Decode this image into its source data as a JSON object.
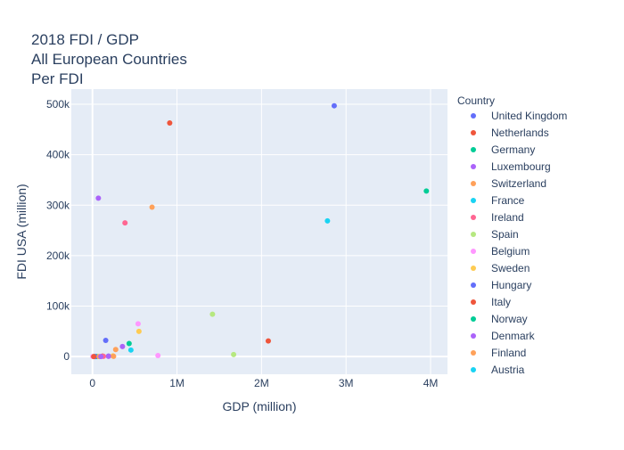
{
  "chart_data": {
    "type": "scatter",
    "title_lines": [
      "2018 FDI / GDP",
      "All European Countries",
      "Per FDI"
    ],
    "xlabel": "GDP (million)",
    "ylabel": "FDI USA (million)",
    "xlim": [
      -250000,
      4200000
    ],
    "ylim": [
      -35000,
      530000
    ],
    "x_ticks": [
      0,
      1000000,
      2000000,
      3000000,
      4000000
    ],
    "x_tick_labels": [
      "0",
      "1M",
      "2M",
      "3M",
      "4M"
    ],
    "y_ticks": [
      0,
      100000,
      200000,
      300000,
      400000,
      500000
    ],
    "y_tick_labels": [
      "0",
      "100k",
      "200k",
      "300k",
      "400k",
      "500k"
    ],
    "grid": true,
    "legend": {
      "title": "Country",
      "placement": "right"
    },
    "series": [
      {
        "name": "United Kingdom",
        "color": "#636efa",
        "x": [
          2860000
        ],
        "y": [
          497000
        ]
      },
      {
        "name": "Netherlands",
        "color": "#EF553B",
        "x": [
          914000
        ],
        "y": [
          463000
        ]
      },
      {
        "name": "Germany",
        "color": "#00cc96",
        "x": [
          3950000
        ],
        "y": [
          328000
        ]
      },
      {
        "name": "Luxembourg",
        "color": "#ab63fa",
        "x": [
          70000
        ],
        "y": [
          314000
        ]
      },
      {
        "name": "Switzerland",
        "color": "#FFA15A",
        "x": [
          705000
        ],
        "y": [
          296000
        ]
      },
      {
        "name": "France",
        "color": "#19d3f3",
        "x": [
          2780000
        ],
        "y": [
          269000
        ]
      },
      {
        "name": "Ireland",
        "color": "#FF6692",
        "x": [
          385000
        ],
        "y": [
          265000
        ]
      },
      {
        "name": "Spain",
        "color": "#B6E880",
        "x": [
          1420000
        ],
        "y": [
          84000
        ]
      },
      {
        "name": "Belgium",
        "color": "#FF97FF",
        "x": [
          540000
        ],
        "y": [
          65000
        ]
      },
      {
        "name": "Sweden",
        "color": "#FECB52",
        "x": [
          550000
        ],
        "y": [
          50000
        ]
      },
      {
        "name": "Hungary",
        "color": "#636efa",
        "x": [
          157000
        ],
        "y": [
          32000
        ]
      },
      {
        "name": "Italy",
        "color": "#EF553B",
        "x": [
          2080000
        ],
        "y": [
          31000
        ]
      },
      {
        "name": "Norway",
        "color": "#00cc96",
        "x": [
          434000
        ],
        "y": [
          26000
        ]
      },
      {
        "name": "Denmark",
        "color": "#ab63fa",
        "x": [
          355000
        ],
        "y": [
          20000
        ]
      },
      {
        "name": "Finland",
        "color": "#FFA15A",
        "x": [
          275000
        ],
        "y": [
          14000
        ]
      },
      {
        "name": "Austria",
        "color": "#19d3f3",
        "x": [
          455000
        ],
        "y": [
          13000
        ]
      }
    ],
    "unlisted_points": [
      {
        "color": "#B6E880",
        "x": 1670000,
        "y": 4000
      },
      {
        "color": "#FF97FF",
        "x": 775000,
        "y": 2000
      },
      {
        "color": "#FECB52",
        "x": 242000,
        "y": 1500
      },
      {
        "color": "#636efa",
        "x": 190000,
        "y": 1000
      },
      {
        "color": "#EF553B",
        "x": 120000,
        "y": 1000
      },
      {
        "color": "#ab63fa",
        "x": 190000,
        "y": 500
      },
      {
        "color": "#FF6692",
        "x": 130000,
        "y": 500
      },
      {
        "color": "#FFA15A",
        "x": 250000,
        "y": 500
      },
      {
        "color": "#19d3f3",
        "x": 55000,
        "y": 0
      },
      {
        "color": "#FF97FF",
        "x": 5000,
        "y": 0
      },
      {
        "color": "#B6E880",
        "x": 20000,
        "y": 0
      },
      {
        "color": "#FECB52",
        "x": 60000,
        "y": 0
      },
      {
        "color": "#00cc96",
        "x": 40000,
        "y": 0
      },
      {
        "color": "#636efa",
        "x": 30000,
        "y": 0
      },
      {
        "color": "#FFA15A",
        "x": 80000,
        "y": 0
      },
      {
        "color": "#EF553B",
        "x": 15000,
        "y": 0
      },
      {
        "color": "#ab63fa",
        "x": 100000,
        "y": 0
      }
    ],
    "colors": {
      "plot_bg": "#E5ECF6",
      "grid": "#ffffff",
      "text": "#2a3f5f"
    }
  }
}
